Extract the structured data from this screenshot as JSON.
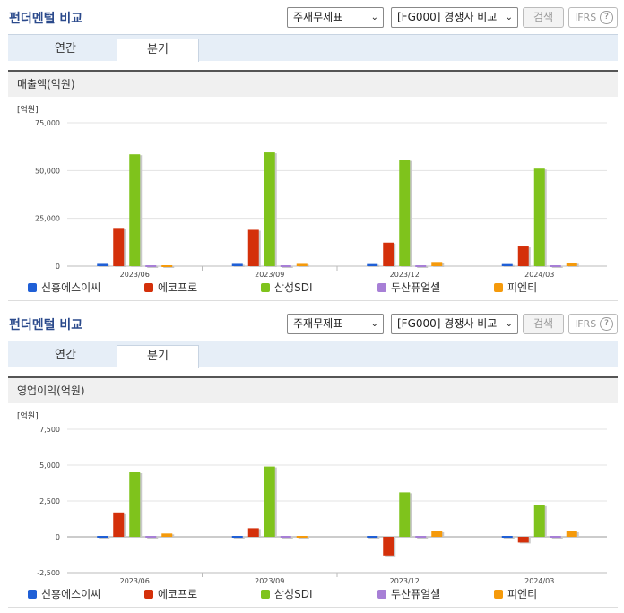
{
  "panels": [
    {
      "title": "펀더멘털 비교",
      "select_statement": "주재무제표",
      "select_compare": "[FG000] 경쟁사 비교",
      "search_label": "검색",
      "ifrs_label": "IFRS",
      "help_glyph": "?",
      "tabs": [
        "연간",
        "분기"
      ],
      "active_tab": "분기",
      "section_title": "매출액(억원)"
    },
    {
      "title": "펀더멘털 비교",
      "select_statement": "주재무제표",
      "select_compare": "[FG000] 경쟁사 비교",
      "search_label": "검색",
      "ifrs_label": "IFRS",
      "help_glyph": "?",
      "tabs": [
        "연간",
        "분기"
      ],
      "active_tab": "분기",
      "section_title": "영업이익(억원)"
    }
  ],
  "chart_data": [
    {
      "type": "bar",
      "unit_label": "[억원]",
      "categories": [
        "2023/06",
        "2023/09",
        "2023/12",
        "2024/03"
      ],
      "y_ticks": [
        "75,000",
        "50,000",
        "25,000",
        "0"
      ],
      "ylim": [
        0,
        75000
      ],
      "grid": true,
      "legend": "bottom",
      "series": [
        {
          "name": "신흥에스이씨",
          "color": "#1f5fd6",
          "values": [
            1200,
            1200,
            1100,
            1100
          ]
        },
        {
          "name": "에코프로",
          "color": "#d4300a",
          "values": [
            20000,
            19000,
            12300,
            10300
          ]
        },
        {
          "name": "삼성SDI",
          "color": "#7fc31c",
          "values": [
            58500,
            59500,
            55500,
            51000
          ]
        },
        {
          "name": "두산퓨얼셀",
          "color": "#a77fd6",
          "values": [
            0,
            0,
            0,
            0
          ]
        },
        {
          "name": "피엔티",
          "color": "#f59a0b",
          "values": [
            700,
            1200,
            2200,
            1700
          ]
        }
      ]
    },
    {
      "type": "bar",
      "unit_label": "[억원]",
      "categories": [
        "2023/06",
        "2023/09",
        "2023/12",
        "2024/03"
      ],
      "y_ticks": [
        "7,500",
        "5,000",
        "2,500",
        "0",
        "-2,500"
      ],
      "ylim": [
        -2500,
        7500
      ],
      "grid": true,
      "legend": "bottom",
      "series": [
        {
          "name": "신흥에스이씨",
          "color": "#1f5fd6",
          "values": [
            120,
            100,
            110,
            80
          ]
        },
        {
          "name": "에코프로",
          "color": "#d4300a",
          "values": [
            1700,
            600,
            -1300,
            -400
          ]
        },
        {
          "name": "삼성SDI",
          "color": "#7fc31c",
          "values": [
            4500,
            4900,
            3100,
            2200
          ]
        },
        {
          "name": "두산퓨얼셀",
          "color": "#a77fd6",
          "values": [
            0,
            0,
            0,
            0
          ]
        },
        {
          "name": "피엔티",
          "color": "#f59a0b",
          "values": [
            230,
            -120,
            380,
            380
          ]
        }
      ]
    }
  ]
}
